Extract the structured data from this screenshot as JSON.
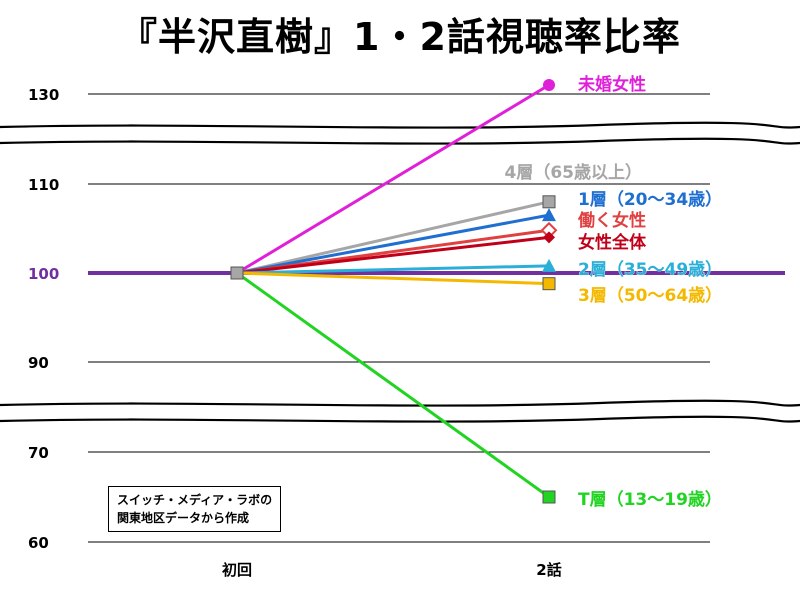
{
  "chart_data": {
    "type": "line",
    "title": "『半沢直樹』1・2話視聴率比率",
    "categories": [
      "初回",
      "2話"
    ],
    "y_ticks": [
      "130",
      "110",
      "100",
      "90",
      "70",
      "60"
    ],
    "baseline": {
      "value": 100,
      "color": "#7030a0"
    },
    "axis_breaks": [
      [
        110,
        130
      ],
      [
        70,
        90
      ]
    ],
    "grid": true,
    "series": [
      {
        "name": "未婚女性",
        "values": [
          100,
          132
        ],
        "color": "#e020d8",
        "marker": "circle"
      },
      {
        "name": "4層（65歳以上）",
        "values": [
          100,
          108
        ],
        "color": "#a6a6a6",
        "marker": "square"
      },
      {
        "name": "1層（20～34歳）",
        "values": [
          100,
          106.5
        ],
        "color": "#1f6fd1",
        "marker": "triangle"
      },
      {
        "name": "働く女性",
        "values": [
          100,
          104.8
        ],
        "color": "#e04040",
        "marker": "diamond-open"
      },
      {
        "name": "女性全体",
        "values": [
          100,
          104
        ],
        "color": "#c00018",
        "marker": "diamond"
      },
      {
        "name": "2層（35～49歳）",
        "values": [
          100,
          100.8
        ],
        "color": "#2ab0d8",
        "marker": "triangle"
      },
      {
        "name": "3層（50～64歳）",
        "values": [
          100,
          98.8
        ],
        "color": "#f5b800",
        "marker": "square"
      },
      {
        "name": "T層（13～19歳）",
        "values": [
          100,
          65
        ],
        "color": "#22d422",
        "marker": "square"
      }
    ]
  },
  "note": {
    "line1": "スイッチ・メディア・ラボの",
    "line2": "関東地区データから作成"
  }
}
